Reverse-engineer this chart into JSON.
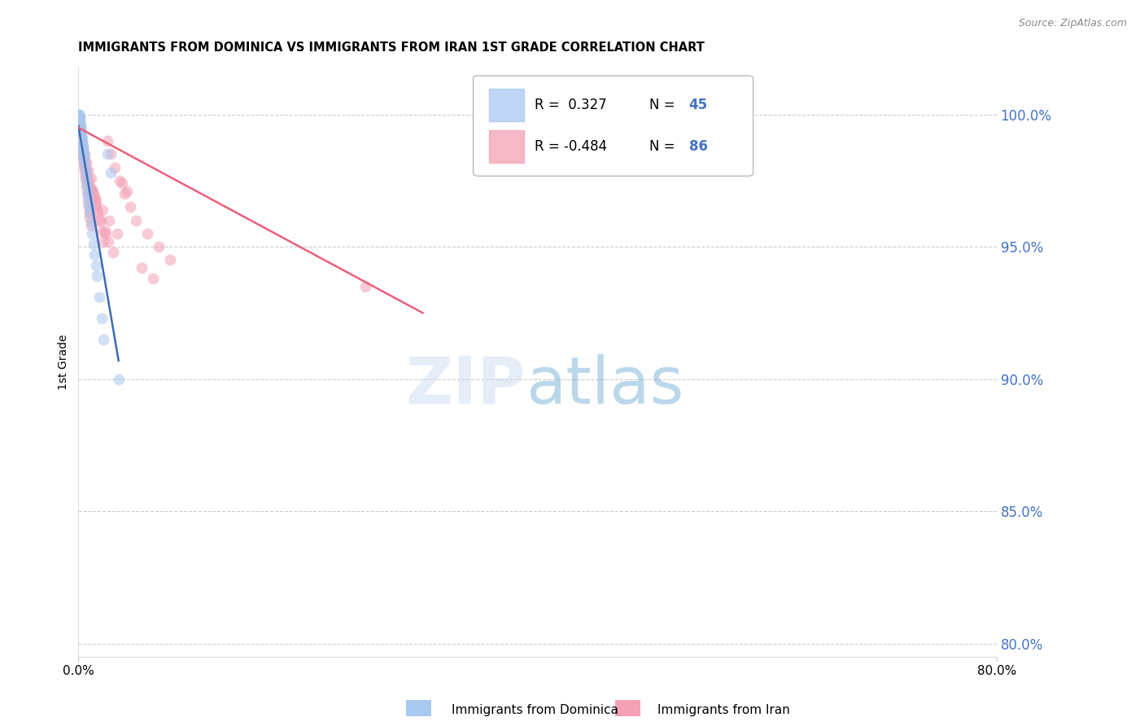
{
  "title": "IMMIGRANTS FROM DOMINICA VS IMMIGRANTS FROM IRAN 1ST GRADE CORRELATION CHART",
  "source": "Source: ZipAtlas.com",
  "ylabel": "1st Grade",
  "legend_blue_r": "0.327",
  "legend_blue_n": "45",
  "legend_pink_r": "-0.484",
  "legend_pink_n": "86",
  "legend_label_blue": "Immigrants from Dominica",
  "legend_label_pink": "Immigrants from Iran",
  "color_blue": "#a8c8f0",
  "color_pink": "#f4a0b5",
  "trendline_blue": "#3d6bb5",
  "trendline_pink": "#e8607a",
  "grid_color": "#cccccc",
  "right_tick_color": "#4472c4",
  "x_lim": [
    0.0,
    80.0
  ],
  "y_lim": [
    79.5,
    101.8
  ],
  "y_right_ticks": [
    80.0,
    85.0,
    90.0,
    95.0,
    100.0
  ],
  "dominica_x": [
    0.05,
    0.08,
    0.1,
    0.12,
    0.15,
    0.18,
    0.2,
    0.22,
    0.25,
    0.28,
    0.3,
    0.32,
    0.35,
    0.38,
    0.4,
    0.42,
    0.45,
    0.48,
    0.5,
    0.55,
    0.6,
    0.65,
    0.7,
    0.75,
    0.8,
    0.85,
    0.9,
    0.95,
    1.0,
    1.1,
    1.2,
    1.3,
    1.4,
    1.5,
    1.6,
    1.8,
    2.0,
    2.2,
    2.5,
    2.8,
    0.06,
    0.09,
    0.13,
    0.16,
    3.5
  ],
  "dominica_y": [
    100.0,
    100.0,
    99.9,
    99.8,
    99.7,
    99.6,
    99.5,
    99.4,
    99.3,
    99.2,
    99.1,
    99.0,
    98.9,
    98.8,
    98.7,
    98.6,
    98.5,
    98.4,
    98.3,
    98.1,
    97.9,
    97.7,
    97.5,
    97.3,
    97.1,
    96.9,
    96.7,
    96.5,
    96.3,
    95.9,
    95.5,
    95.1,
    94.7,
    94.3,
    93.9,
    93.1,
    92.3,
    91.5,
    98.5,
    97.8,
    100.0,
    99.9,
    99.7,
    99.5,
    90.0
  ],
  "iran_x": [
    0.05,
    0.08,
    0.1,
    0.12,
    0.15,
    0.18,
    0.2,
    0.22,
    0.25,
    0.28,
    0.3,
    0.35,
    0.38,
    0.4,
    0.42,
    0.45,
    0.5,
    0.55,
    0.6,
    0.65,
    0.7,
    0.75,
    0.8,
    0.85,
    0.9,
    0.95,
    1.0,
    1.1,
    1.2,
    1.3,
    1.4,
    1.5,
    1.6,
    1.8,
    2.0,
    2.2,
    2.5,
    2.8,
    3.2,
    3.6,
    4.0,
    4.5,
    5.0,
    6.0,
    7.0,
    8.0,
    0.32,
    0.48,
    0.58,
    0.72,
    0.88,
    1.05,
    1.25,
    1.45,
    1.7,
    1.95,
    2.3,
    2.6,
    3.0,
    3.8,
    4.2,
    0.15,
    0.25,
    0.62,
    0.78,
    1.15,
    1.55,
    2.1,
    2.7,
    3.4,
    0.4,
    0.52,
    0.68,
    0.82,
    1.08,
    5.5,
    6.5,
    0.36,
    0.44,
    0.56,
    0.66,
    25.0,
    0.95,
    1.35,
    2.4
  ],
  "iran_y": [
    99.8,
    99.7,
    99.6,
    99.5,
    99.4,
    99.3,
    99.2,
    99.1,
    99.0,
    98.9,
    98.8,
    98.7,
    98.6,
    98.5,
    98.4,
    98.3,
    98.1,
    97.9,
    97.7,
    97.5,
    97.3,
    97.1,
    96.9,
    96.7,
    96.5,
    96.3,
    96.1,
    95.8,
    97.2,
    97.0,
    96.8,
    96.6,
    96.4,
    96.0,
    95.6,
    95.2,
    99.0,
    98.5,
    98.0,
    97.5,
    97.0,
    96.5,
    96.0,
    95.5,
    95.0,
    94.5,
    98.7,
    98.4,
    98.1,
    97.8,
    97.5,
    97.2,
    96.9,
    96.6,
    96.3,
    96.0,
    95.6,
    95.2,
    94.8,
    97.4,
    97.1,
    99.3,
    99.1,
    97.6,
    97.4,
    97.1,
    96.8,
    96.4,
    96.0,
    95.5,
    98.8,
    98.5,
    98.2,
    97.9,
    97.6,
    94.2,
    93.8,
    98.6,
    98.3,
    98.0,
    97.7,
    93.5,
    97.2,
    96.9,
    95.5
  ],
  "pink_trendline_x": [
    0.0,
    30.0
  ],
  "pink_trendline_y": [
    99.5,
    92.5
  ]
}
